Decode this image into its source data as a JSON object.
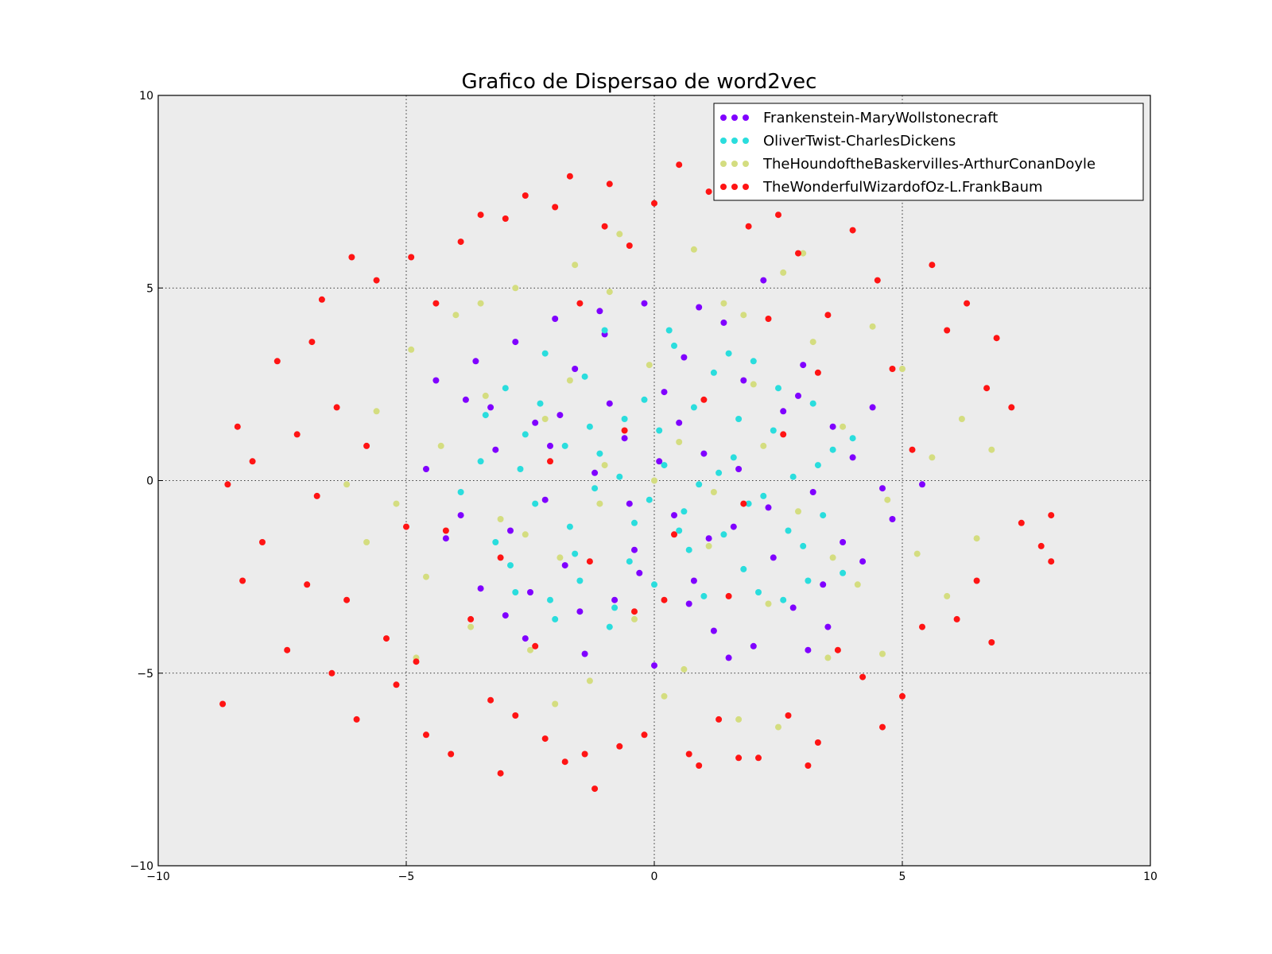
{
  "chart_data": {
    "type": "scatter",
    "title": "Grafico de Dispersao de word2vec",
    "xlabel": "",
    "ylabel": "",
    "xlim": [
      -10,
      10
    ],
    "ylim": [
      -10,
      10
    ],
    "xticks": [
      -10,
      -5,
      0,
      5,
      10
    ],
    "yticks": [
      -10,
      -5,
      0,
      5,
      10
    ],
    "xtick_labels": [
      "−10",
      "−5",
      "0",
      "5",
      "10"
    ],
    "ytick_labels": [
      "−10",
      "−5",
      "0",
      "5",
      "10"
    ],
    "grid": true,
    "grid_style": "dotted",
    "legend_position": "top-right",
    "background_color": "#ececec",
    "series": [
      {
        "name": "Frankenstein-MaryWollstonecraft",
        "color": "#8000ff",
        "points": [
          [
            -4.2,
            -1.5
          ],
          [
            -3.8,
            2.1
          ],
          [
            -3.5,
            -2.8
          ],
          [
            -3.2,
            0.8
          ],
          [
            -3.0,
            -3.5
          ],
          [
            -2.8,
            3.6
          ],
          [
            -2.6,
            -4.1
          ],
          [
            -2.4,
            1.5
          ],
          [
            -2.2,
            -0.5
          ],
          [
            -2.0,
            4.2
          ],
          [
            -1.8,
            -2.2
          ],
          [
            -1.6,
            2.9
          ],
          [
            -1.4,
            -4.5
          ],
          [
            -1.2,
            0.2
          ],
          [
            -1.0,
            3.8
          ],
          [
            -0.8,
            -3.1
          ],
          [
            -0.6,
            1.1
          ],
          [
            -0.4,
            -1.8
          ],
          [
            -0.2,
            4.6
          ],
          [
            0.0,
            -4.8
          ],
          [
            0.2,
            2.3
          ],
          [
            0.4,
            -0.9
          ],
          [
            0.6,
            3.2
          ],
          [
            0.8,
            -2.6
          ],
          [
            1.0,
            0.7
          ],
          [
            1.2,
            -3.9
          ],
          [
            1.4,
            4.1
          ],
          [
            1.6,
            -1.2
          ],
          [
            1.8,
            2.6
          ],
          [
            2.0,
            -4.3
          ],
          [
            2.2,
            5.2
          ],
          [
            2.4,
            -2.0
          ],
          [
            2.6,
            1.8
          ],
          [
            2.8,
            -3.3
          ],
          [
            3.0,
            3.0
          ],
          [
            3.2,
            -0.3
          ],
          [
            3.4,
            -2.7
          ],
          [
            3.6,
            1.4
          ],
          [
            3.8,
            -1.6
          ],
          [
            4.0,
            0.6
          ],
          [
            4.2,
            -2.1
          ],
          [
            4.4,
            1.9
          ],
          [
            4.6,
            -0.2
          ],
          [
            4.8,
            -1.0
          ],
          [
            5.4,
            -0.1
          ],
          [
            -4.6,
            0.3
          ],
          [
            -4.4,
            2.6
          ],
          [
            -3.9,
            -0.9
          ],
          [
            -3.3,
            1.9
          ],
          [
            -2.9,
            -1.3
          ],
          [
            -2.1,
            0.9
          ],
          [
            -1.5,
            -3.4
          ],
          [
            -0.9,
            2.0
          ],
          [
            -0.3,
            -2.4
          ],
          [
            0.5,
            1.5
          ],
          [
            1.1,
            -1.5
          ],
          [
            1.7,
            0.3
          ],
          [
            2.3,
            -0.7
          ],
          [
            2.9,
            2.2
          ],
          [
            3.5,
            -3.8
          ],
          [
            -1.1,
            4.4
          ],
          [
            0.9,
            4.5
          ],
          [
            -2.5,
            -2.9
          ],
          [
            1.5,
            -4.6
          ],
          [
            3.1,
            -4.4
          ],
          [
            -3.6,
            3.1
          ],
          [
            0.1,
            0.5
          ],
          [
            -0.5,
            -0.6
          ],
          [
            0.7,
            -3.2
          ],
          [
            -1.9,
            1.7
          ]
        ]
      },
      {
        "name": "OliverTwist-CharlesDickens",
        "color": "#2adddd",
        "points": [
          [
            -3.5,
            0.5
          ],
          [
            -3.2,
            -1.6
          ],
          [
            -3.0,
            2.4
          ],
          [
            -2.8,
            -2.9
          ],
          [
            -2.6,
            1.2
          ],
          [
            -2.4,
            -0.6
          ],
          [
            -2.2,
            3.3
          ],
          [
            -2.0,
            -3.6
          ],
          [
            -1.8,
            0.9
          ],
          [
            -1.6,
            -1.9
          ],
          [
            -1.4,
            2.7
          ],
          [
            -1.2,
            -0.2
          ],
          [
            -1.0,
            3.9
          ],
          [
            -0.8,
            -3.3
          ],
          [
            -0.6,
            1.6
          ],
          [
            -0.4,
            -1.1
          ],
          [
            -0.2,
            2.1
          ],
          [
            0.0,
            -2.7
          ],
          [
            0.2,
            0.4
          ],
          [
            0.4,
            3.5
          ],
          [
            0.6,
            -0.8
          ],
          [
            0.8,
            1.9
          ],
          [
            1.0,
            -3.0
          ],
          [
            1.2,
            2.8
          ],
          [
            1.4,
            -1.4
          ],
          [
            1.6,
            0.6
          ],
          [
            1.8,
            -2.3
          ],
          [
            2.0,
            3.1
          ],
          [
            2.2,
            -0.4
          ],
          [
            2.4,
            1.3
          ],
          [
            2.6,
            -3.1
          ],
          [
            2.8,
            0.1
          ],
          [
            3.0,
            -1.7
          ],
          [
            3.2,
            2.0
          ],
          [
            3.4,
            -0.9
          ],
          [
            3.6,
            0.8
          ],
          [
            3.8,
            -2.4
          ],
          [
            4.0,
            1.1
          ],
          [
            -3.9,
            -0.3
          ],
          [
            -3.4,
            1.7
          ],
          [
            -2.9,
            -2.2
          ],
          [
            -2.3,
            2.0
          ],
          [
            -1.7,
            -1.2
          ],
          [
            -1.1,
            0.7
          ],
          [
            -0.5,
            -2.1
          ],
          [
            0.1,
            1.3
          ],
          [
            0.7,
            -1.8
          ],
          [
            1.3,
            0.2
          ],
          [
            1.9,
            -0.6
          ],
          [
            2.5,
            2.4
          ],
          [
            3.1,
            -2.6
          ],
          [
            -0.9,
            -3.8
          ],
          [
            0.3,
            3.9
          ],
          [
            1.5,
            3.3
          ],
          [
            -2.1,
            -3.1
          ],
          [
            2.7,
            -1.3
          ],
          [
            -1.3,
            1.4
          ],
          [
            0.9,
            -0.1
          ],
          [
            -0.1,
            -0.5
          ],
          [
            1.7,
            1.6
          ],
          [
            -2.7,
            0.3
          ],
          [
            3.3,
            0.4
          ],
          [
            -0.7,
            0.1
          ],
          [
            0.5,
            -1.3
          ],
          [
            2.1,
            -2.9
          ],
          [
            -1.5,
            -2.6
          ]
        ]
      },
      {
        "name": "TheHoundoftheBaskervilles-ArthurConanDoyle",
        "color": "#d4dd80",
        "points": [
          [
            -5.6,
            1.8
          ],
          [
            -5.2,
            -0.6
          ],
          [
            -4.9,
            3.4
          ],
          [
            -4.6,
            -2.5
          ],
          [
            -4.3,
            0.9
          ],
          [
            -4.0,
            4.3
          ],
          [
            -3.7,
            -3.8
          ],
          [
            -3.4,
            2.2
          ],
          [
            -3.1,
            -1.0
          ],
          [
            -2.8,
            5.0
          ],
          [
            -2.5,
            -4.4
          ],
          [
            -2.2,
            1.6
          ],
          [
            -1.9,
            -2.0
          ],
          [
            -1.6,
            5.6
          ],
          [
            -1.3,
            -5.2
          ],
          [
            -1.0,
            0.4
          ],
          [
            -0.7,
            6.4
          ],
          [
            -0.4,
            -3.6
          ],
          [
            -0.1,
            3.0
          ],
          [
            0.2,
            -5.6
          ],
          [
            0.5,
            1.0
          ],
          [
            0.8,
            6.0
          ],
          [
            1.1,
            -1.7
          ],
          [
            1.4,
            4.6
          ],
          [
            1.7,
            -6.2
          ],
          [
            2.0,
            2.5
          ],
          [
            2.3,
            -3.2
          ],
          [
            2.6,
            5.4
          ],
          [
            2.9,
            -0.8
          ],
          [
            3.2,
            3.6
          ],
          [
            3.5,
            -4.6
          ],
          [
            3.8,
            1.4
          ],
          [
            4.1,
            -2.7
          ],
          [
            4.4,
            4.0
          ],
          [
            4.7,
            -0.5
          ],
          [
            5.0,
            2.9
          ],
          [
            5.3,
            -1.9
          ],
          [
            5.6,
            0.6
          ],
          [
            5.9,
            -3.0
          ],
          [
            6.2,
            1.6
          ],
          [
            6.5,
            -1.5
          ],
          [
            6.8,
            0.8
          ],
          [
            -6.2,
            -0.1
          ],
          [
            -5.8,
            -1.6
          ],
          [
            2.5,
            -6.4
          ],
          [
            -2.0,
            -5.8
          ],
          [
            3.0,
            5.9
          ],
          [
            -3.5,
            4.6
          ],
          [
            4.6,
            -4.5
          ],
          [
            -4.8,
            -4.6
          ],
          [
            0.6,
            -4.9
          ],
          [
            1.8,
            4.3
          ],
          [
            -0.9,
            4.9
          ],
          [
            3.6,
            -2.0
          ],
          [
            -2.6,
            -1.4
          ],
          [
            0.0,
            0.0
          ],
          [
            -1.1,
            -0.6
          ],
          [
            1.2,
            -0.3
          ],
          [
            2.2,
            0.9
          ],
          [
            -1.7,
            2.6
          ]
        ]
      },
      {
        "name": "TheWonderfulWizardofOz-L.FrankBaum",
        "color": "#ff1414",
        "points": [
          [
            -8.7,
            -5.8
          ],
          [
            -8.6,
            -0.1
          ],
          [
            -8.4,
            1.4
          ],
          [
            -8.3,
            -2.6
          ],
          [
            -8.1,
            0.5
          ],
          [
            -7.9,
            -1.6
          ],
          [
            -7.6,
            3.1
          ],
          [
            -7.4,
            -4.4
          ],
          [
            -7.2,
            1.2
          ],
          [
            -7.0,
            -2.7
          ],
          [
            -6.9,
            3.6
          ],
          [
            -6.8,
            -0.4
          ],
          [
            -6.7,
            4.7
          ],
          [
            -6.5,
            -5.0
          ],
          [
            -6.4,
            1.9
          ],
          [
            -6.2,
            -3.1
          ],
          [
            -6.1,
            5.8
          ],
          [
            -6.0,
            -6.2
          ],
          [
            -5.8,
            0.9
          ],
          [
            -5.6,
            5.2
          ],
          [
            -5.4,
            -4.1
          ],
          [
            -5.2,
            -5.3
          ],
          [
            -5.0,
            -1.2
          ],
          [
            -4.9,
            5.8
          ],
          [
            -4.8,
            -4.7
          ],
          [
            -4.6,
            -6.6
          ],
          [
            -4.4,
            4.6
          ],
          [
            -4.2,
            -1.3
          ],
          [
            -4.1,
            -7.1
          ],
          [
            -3.9,
            6.2
          ],
          [
            -3.7,
            -3.6
          ],
          [
            -3.5,
            6.9
          ],
          [
            -3.3,
            -5.7
          ],
          [
            -3.1,
            -7.6
          ],
          [
            -3.0,
            6.8
          ],
          [
            -2.8,
            -6.1
          ],
          [
            -2.6,
            7.4
          ],
          [
            -2.4,
            -4.3
          ],
          [
            -2.2,
            -6.7
          ],
          [
            -2.0,
            7.1
          ],
          [
            -1.8,
            -7.3
          ],
          [
            -1.7,
            7.9
          ],
          [
            -1.5,
            4.6
          ],
          [
            -1.4,
            -7.1
          ],
          [
            -1.2,
            -8.0
          ],
          [
            -1.0,
            6.6
          ],
          [
            -0.9,
            7.7
          ],
          [
            -0.7,
            -6.9
          ],
          [
            -0.5,
            6.1
          ],
          [
            -0.4,
            -3.4
          ],
          [
            -0.2,
            -6.6
          ],
          [
            0.0,
            7.2
          ],
          [
            0.2,
            -3.1
          ],
          [
            0.5,
            8.2
          ],
          [
            0.7,
            -7.1
          ],
          [
            0.9,
            -7.4
          ],
          [
            1.1,
            7.5
          ],
          [
            1.3,
            -6.2
          ],
          [
            1.5,
            -3.0
          ],
          [
            1.7,
            -7.2
          ],
          [
            1.9,
            6.6
          ],
          [
            2.1,
            -7.2
          ],
          [
            2.3,
            4.2
          ],
          [
            2.5,
            6.9
          ],
          [
            2.7,
            -6.1
          ],
          [
            2.9,
            5.9
          ],
          [
            3.1,
            -7.4
          ],
          [
            3.3,
            -6.8
          ],
          [
            3.5,
            4.3
          ],
          [
            3.7,
            -4.4
          ],
          [
            4.0,
            6.5
          ],
          [
            4.2,
            -5.1
          ],
          [
            4.5,
            5.2
          ],
          [
            4.6,
            -6.4
          ],
          [
            4.8,
            2.9
          ],
          [
            5.0,
            -5.6
          ],
          [
            5.2,
            0.8
          ],
          [
            5.4,
            -3.8
          ],
          [
            5.6,
            5.6
          ],
          [
            5.9,
            3.9
          ],
          [
            6.1,
            -3.6
          ],
          [
            6.3,
            4.6
          ],
          [
            6.5,
            -2.6
          ],
          [
            6.7,
            2.4
          ],
          [
            6.8,
            -4.2
          ],
          [
            6.9,
            3.7
          ],
          [
            7.2,
            1.9
          ],
          [
            7.4,
            -1.1
          ],
          [
            7.8,
            -1.7
          ],
          [
            8.0,
            -2.1
          ],
          [
            8.0,
            -0.9
          ],
          [
            -2.1,
            0.5
          ],
          [
            -1.3,
            -2.1
          ],
          [
            -0.6,
            1.3
          ],
          [
            0.4,
            -1.4
          ],
          [
            1.0,
            2.1
          ],
          [
            1.8,
            -0.6
          ],
          [
            2.6,
            1.2
          ],
          [
            -3.1,
            -2.0
          ],
          [
            3.3,
            2.8
          ]
        ]
      }
    ]
  }
}
